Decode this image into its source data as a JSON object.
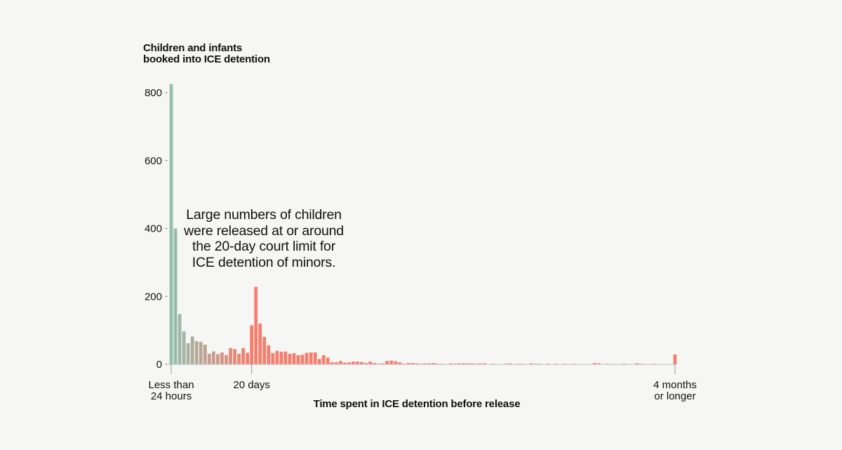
{
  "chart_data": {
    "type": "bar",
    "title": "Children and infants booked into ICE detention",
    "ylabel": "Children and infants booked into ICE detention",
    "xlabel": "Time spent in ICE detention before release",
    "ylim": [
      0,
      850
    ],
    "yticks": [
      0,
      200,
      400,
      600,
      800
    ],
    "grid": false,
    "x_unit": "days",
    "x_tick_labels": [
      {
        "day": 1,
        "lines": [
          "Less than",
          "24 hours"
        ]
      },
      {
        "day": 20,
        "lines": [
          "20 days"
        ]
      },
      {
        "day": 120,
        "lines": [
          "4 months",
          "or longer"
        ]
      }
    ],
    "annotation": "Large numbers of children were released at or around the 20-day court limit for ICE detention of minors.",
    "colors": {
      "short": "#93bfaf",
      "long": "#f47f6e",
      "axis": "#999999"
    },
    "days": [
      1,
      2,
      3,
      4,
      5,
      6,
      7,
      8,
      9,
      10,
      11,
      12,
      13,
      14,
      15,
      16,
      17,
      18,
      19,
      20,
      21,
      22,
      23,
      24,
      25,
      26,
      27,
      28,
      29,
      30,
      31,
      32,
      33,
      34,
      35,
      36,
      37,
      38,
      39,
      40,
      41,
      42,
      43,
      44,
      45,
      46,
      47,
      48,
      49,
      50,
      51,
      52,
      53,
      54,
      55,
      56,
      57,
      58,
      59,
      60,
      61,
      62,
      63,
      64,
      65,
      66,
      67,
      68,
      69,
      70,
      71,
      72,
      73,
      74,
      75,
      76,
      77,
      78,
      79,
      80,
      81,
      82,
      83,
      84,
      85,
      86,
      87,
      88,
      89,
      90,
      91,
      92,
      93,
      94,
      95,
      96,
      97,
      98,
      99,
      100,
      101,
      102,
      103,
      104,
      105,
      106,
      107,
      108,
      109,
      110,
      111,
      112,
      113,
      114,
      115,
      116,
      117,
      118,
      119,
      120
    ],
    "values": [
      825,
      400,
      148,
      97,
      62,
      82,
      68,
      66,
      58,
      31,
      38,
      30,
      35,
      27,
      48,
      45,
      31,
      48,
      34,
      115,
      228,
      120,
      81,
      56,
      33,
      40,
      37,
      38,
      31,
      33,
      27,
      28,
      34,
      35,
      35,
      16,
      27,
      20,
      6,
      6,
      10,
      5,
      6,
      8,
      8,
      7,
      4,
      8,
      4,
      2,
      3,
      10,
      11,
      9,
      6,
      2,
      4,
      4,
      3,
      2,
      3,
      3,
      4,
      2,
      2,
      1,
      3,
      2,
      3,
      3,
      3,
      3,
      2,
      3,
      3,
      1,
      2,
      1,
      1,
      2,
      3,
      1,
      2,
      2,
      1,
      3,
      2,
      2,
      1,
      2,
      1,
      2,
      1,
      2,
      1,
      2,
      1,
      1,
      1,
      1,
      4,
      3,
      1,
      2,
      1,
      1,
      1,
      2,
      1,
      1,
      3,
      2,
      1,
      1,
      2,
      1,
      1,
      1,
      1,
      29
    ]
  }
}
